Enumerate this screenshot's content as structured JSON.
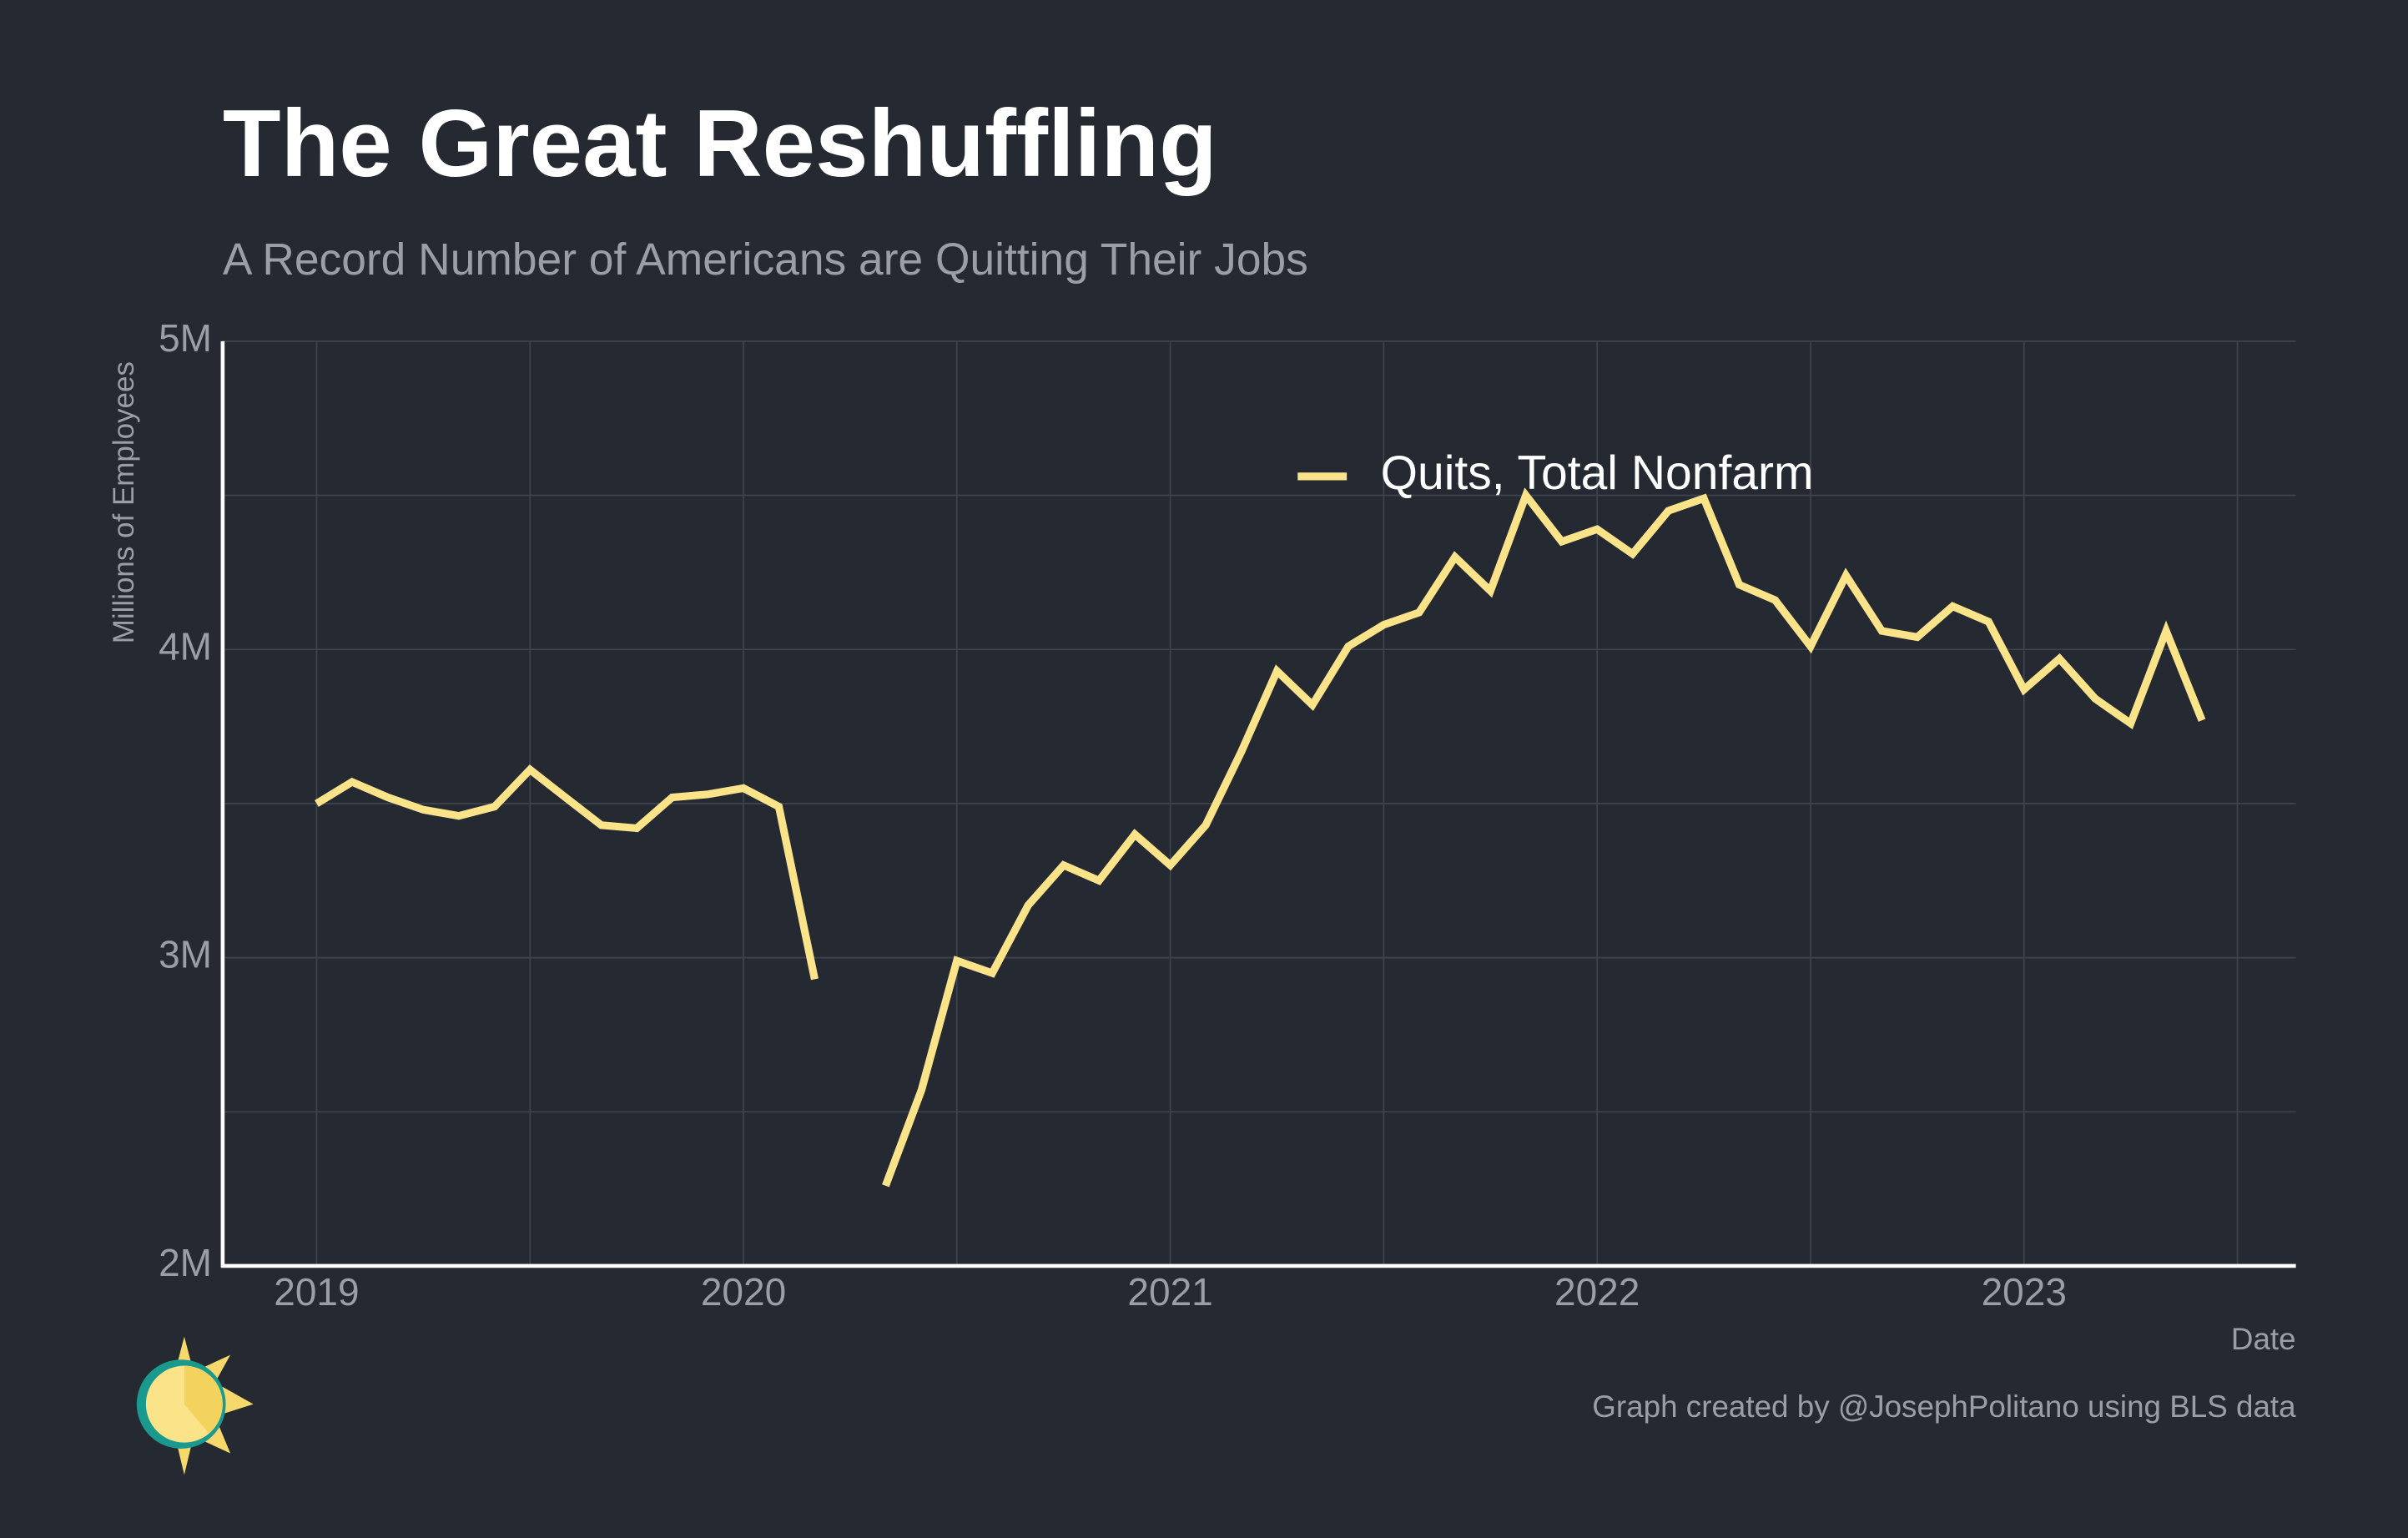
{
  "chart_data": {
    "type": "line",
    "title": "The Great Reshuffling",
    "subtitle": "A Record Number of Americans are Quitting Their Jobs",
    "y_label": "Millions of Employees",
    "x_label": "Date",
    "caption": "Graph created by @JosephPolitano using BLS data",
    "x": [
      2019,
      2019.083,
      2019.167,
      2019.25,
      2019.333,
      2019.417,
      2019.5,
      2019.583,
      2019.667,
      2019.75,
      2019.833,
      2019.917,
      2020,
      2020.083,
      2020.167,
      2020.25,
      2020.333,
      2020.417,
      2020.5,
      2020.583,
      2020.667,
      2020.75,
      2020.833,
      2020.917,
      2021,
      2021.083,
      2021.167,
      2021.25,
      2021.333,
      2021.417,
      2021.5,
      2021.583,
      2021.667,
      2021.75,
      2021.833,
      2021.917,
      2022,
      2022.083,
      2022.167,
      2022.25,
      2022.333,
      2022.417,
      2022.5,
      2022.583,
      2022.667,
      2022.75,
      2022.833,
      2022.917,
      2023,
      2023.083,
      2023.167,
      2023.25,
      2023.333,
      2023.417
    ],
    "series": [
      {
        "name": "Quits, Total Nonfarm",
        "color": "#fbe38a",
        "values": [
          3.5,
          3.57,
          3.52,
          3.48,
          3.46,
          3.49,
          3.61,
          3.52,
          3.43,
          3.42,
          3.52,
          3.53,
          3.55,
          3.49,
          2.93,
          null,
          2.26,
          2.57,
          2.99,
          2.95,
          3.17,
          3.3,
          3.25,
          3.4,
          3.3,
          3.43,
          3.67,
          3.93,
          3.82,
          4.01,
          4.08,
          4.12,
          4.3,
          4.19,
          4.5,
          4.35,
          4.39,
          4.31,
          4.45,
          4.49,
          4.21,
          4.16,
          4.01,
          4.24,
          4.06,
          4.04,
          4.14,
          4.09,
          3.87,
          3.97,
          3.84,
          3.76,
          4.06,
          3.77
        ]
      }
    ],
    "xlim": [
      2018.78,
      2023.637
    ],
    "ylim": [
      2,
      5
    ],
    "xticks": [
      2019,
      2020,
      2021,
      2022,
      2023
    ],
    "yticks": [
      {
        "value": 2,
        "label": "2M"
      },
      {
        "value": 3,
        "label": "3M"
      },
      {
        "value": 4,
        "label": "4M"
      },
      {
        "value": 5,
        "label": "5M"
      }
    ],
    "minor_xticks": [
      2019.5,
      2020.5,
      2021.5,
      2022.5,
      2023.5
    ],
    "minor_yticks": [
      2.5,
      3.5,
      4.5
    ],
    "grid": true,
    "legend": "top-center"
  }
}
